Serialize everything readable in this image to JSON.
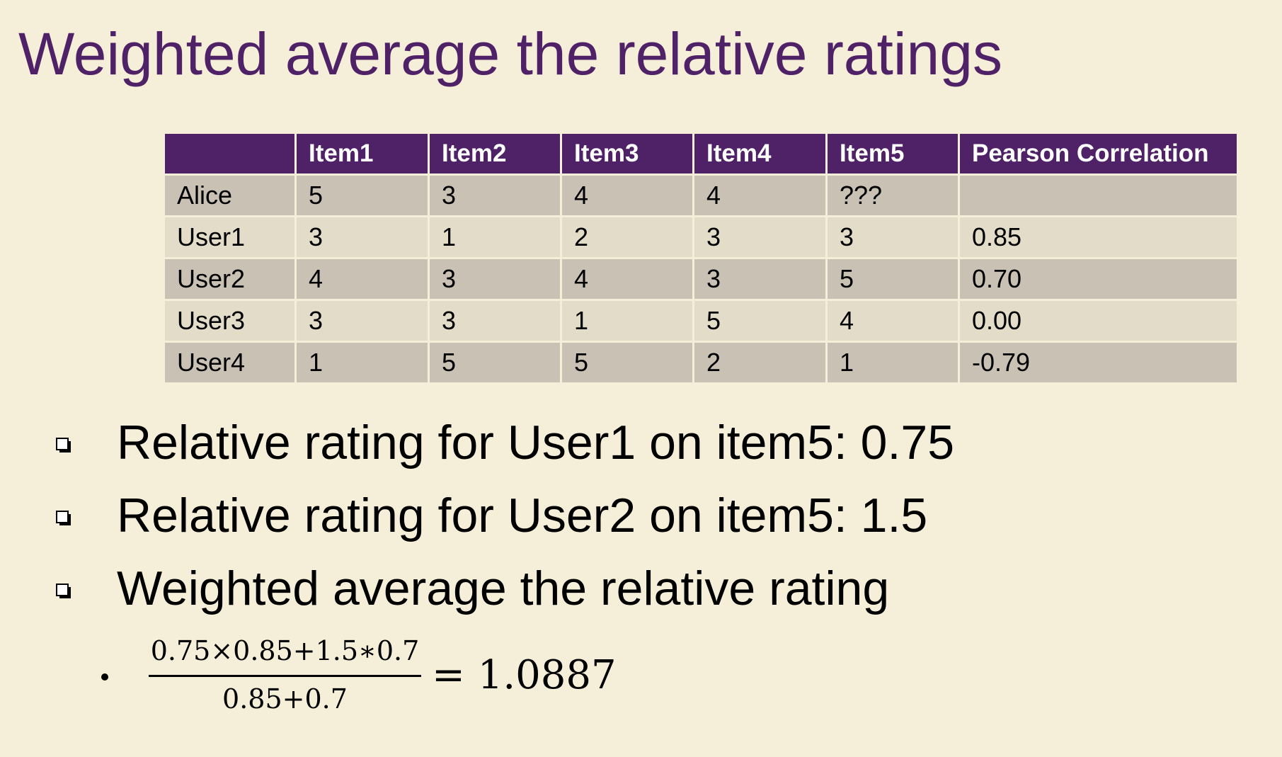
{
  "title": "Weighted average the relative ratings",
  "table": {
    "headers": [
      "",
      "Item1",
      "Item2",
      "Item3",
      "Item4",
      "Item5",
      "Pearson Correlation"
    ],
    "rows": [
      [
        "Alice",
        "5",
        "3",
        "4",
        "4",
        "???",
        ""
      ],
      [
        "User1",
        "3",
        "1",
        "2",
        "3",
        "3",
        "0.85"
      ],
      [
        "User2",
        "4",
        "3",
        "4",
        "3",
        "5",
        "0.70"
      ],
      [
        "User3",
        "3",
        "3",
        "1",
        "5",
        "4",
        "0.00"
      ],
      [
        "User4",
        "1",
        "5",
        "5",
        "2",
        "1",
        "-0.79"
      ]
    ]
  },
  "bullets": [
    {
      "icon": "checkbox-bullet-icon",
      "text": "Relative rating for User1 on item5: 0.75"
    },
    {
      "icon": "checkbox-bullet-icon",
      "text": "Relative rating for User2 on item5: 1.5"
    },
    {
      "icon": "checkbox-bullet-icon",
      "text": "Weighted average the relative rating"
    }
  ],
  "formula": {
    "numerator": "0.75×0.85+1.5∗0.7",
    "denominator": "0.85+0.7",
    "result": "= 1.0887"
  },
  "colors": {
    "background": "#f5eed8",
    "accent": "#4f2167",
    "row_dark": "#c8c1b4",
    "row_light": "#e3dcc8"
  }
}
